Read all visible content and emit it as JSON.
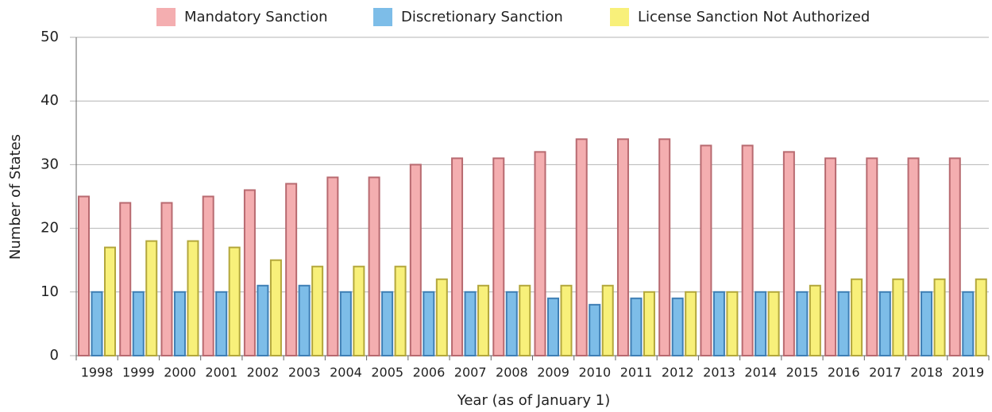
{
  "chart_data": {
    "type": "bar",
    "x_label": "Year (as of January 1)",
    "y_label": "Number of States",
    "categories": [
      "1998",
      "1999",
      "2000",
      "2001",
      "2002",
      "2003",
      "2004",
      "2005",
      "2006",
      "2007",
      "2008",
      "2009",
      "2010",
      "2011",
      "2012",
      "2013",
      "2014",
      "2015",
      "2016",
      "2017",
      "2018",
      "2019"
    ],
    "series": [
      {
        "name": "Mandatory Sanction",
        "color": "#f4aeb0",
        "values": [
          25,
          24,
          24,
          25,
          26,
          27,
          28,
          28,
          30,
          31,
          31,
          32,
          34,
          34,
          34,
          33,
          33,
          32,
          31,
          31,
          31,
          31
        ]
      },
      {
        "name": "Discretionary Sanction",
        "color": "#7dbde8",
        "values": [
          10,
          10,
          10,
          10,
          11,
          11,
          10,
          10,
          10,
          10,
          10,
          9,
          8,
          9,
          9,
          10,
          10,
          10,
          10,
          10,
          10,
          10
        ]
      },
      {
        "name": "License Sanction Not Authorized",
        "color": "#f8f07a",
        "values": [
          17,
          18,
          18,
          17,
          15,
          14,
          14,
          14,
          12,
          11,
          11,
          11,
          11,
          10,
          10,
          10,
          10,
          11,
          12,
          12,
          12,
          12
        ]
      }
    ],
    "ylim": [
      0,
      50
    ],
    "yticks": [
      0,
      10,
      20,
      30,
      40,
      50
    ],
    "grid": true,
    "legend": "top"
  }
}
